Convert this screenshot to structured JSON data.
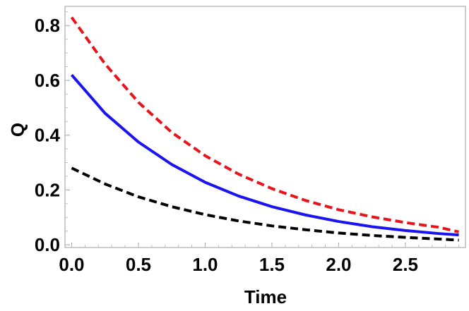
{
  "chart_data": {
    "type": "line",
    "title": "",
    "xlabel": "Time",
    "ylabel": "Q",
    "xlim": [
      -0.05,
      2.95
    ],
    "ylim": [
      -0.01,
      0.87
    ],
    "x_ticks": [
      0.0,
      0.5,
      1.0,
      1.5,
      2.0,
      2.5
    ],
    "y_ticks": [
      0.0,
      0.2,
      0.4,
      0.6,
      0.8
    ],
    "x_tick_labels": [
      "0.0",
      "0.5",
      "1.0",
      "1.5",
      "2.0",
      "2.5"
    ],
    "y_tick_labels": [
      "0.0",
      "0.2",
      "0.4",
      "0.6",
      "0.8"
    ],
    "grid": false,
    "legend": "none",
    "series": [
      {
        "color": "#e8141c",
        "style": "dashed",
        "x": [
          0.0,
          0.25,
          0.5,
          0.75,
          1.0,
          1.25,
          1.5,
          1.75,
          2.0,
          2.25,
          2.5,
          2.75,
          2.9
        ],
        "y": [
          0.83,
          0.66,
          0.52,
          0.41,
          0.325,
          0.258,
          0.205,
          0.162,
          0.128,
          0.102,
          0.081,
          0.064,
          0.047
        ]
      },
      {
        "color": "#1a14f0",
        "style": "solid",
        "x": [
          0.0,
          0.25,
          0.5,
          0.75,
          1.0,
          1.25,
          1.5,
          1.75,
          2.0,
          2.25,
          2.5,
          2.75,
          2.9
        ],
        "y": [
          0.62,
          0.48,
          0.375,
          0.293,
          0.228,
          0.178,
          0.139,
          0.109,
          0.085,
          0.066,
          0.052,
          0.041,
          0.036
        ]
      },
      {
        "color": "#000000",
        "style": "dashed",
        "x": [
          0.0,
          0.25,
          0.5,
          0.75,
          1.0,
          1.25,
          1.5,
          1.75,
          2.0,
          2.25,
          2.5,
          2.75,
          2.9
        ],
        "y": [
          0.28,
          0.222,
          0.175,
          0.139,
          0.11,
          0.087,
          0.069,
          0.055,
          0.043,
          0.034,
          0.027,
          0.021,
          0.017
        ]
      }
    ]
  }
}
